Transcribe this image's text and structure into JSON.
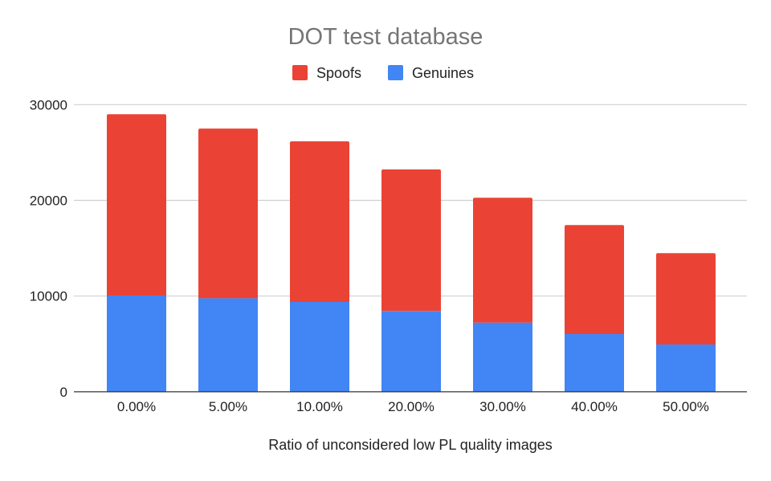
{
  "chart_data": {
    "type": "bar",
    "stacked": true,
    "title": "DOT test database",
    "xlabel": "Ratio of unconsidered low PL quality images",
    "ylabel": "",
    "categories": [
      "0.00%",
      "5.00%",
      "10.00%",
      "20.00%",
      "30.00%",
      "40.00%",
      "50.00%"
    ],
    "series": [
      {
        "name": "Genuines",
        "color": "#4285f4",
        "values": [
          10060,
          9780,
          9390,
          8440,
          7230,
          6030,
          4940
        ]
      },
      {
        "name": "Spoofs",
        "color": "#ea4335",
        "values": [
          18940,
          17720,
          16780,
          14790,
          13040,
          11390,
          9540
        ]
      }
    ],
    "legend_order": [
      "Spoofs",
      "Genuines"
    ],
    "legend_position": "top",
    "ylim": [
      0,
      30000
    ],
    "yticks": [
      0,
      10000,
      20000,
      30000
    ],
    "grid": true
  }
}
